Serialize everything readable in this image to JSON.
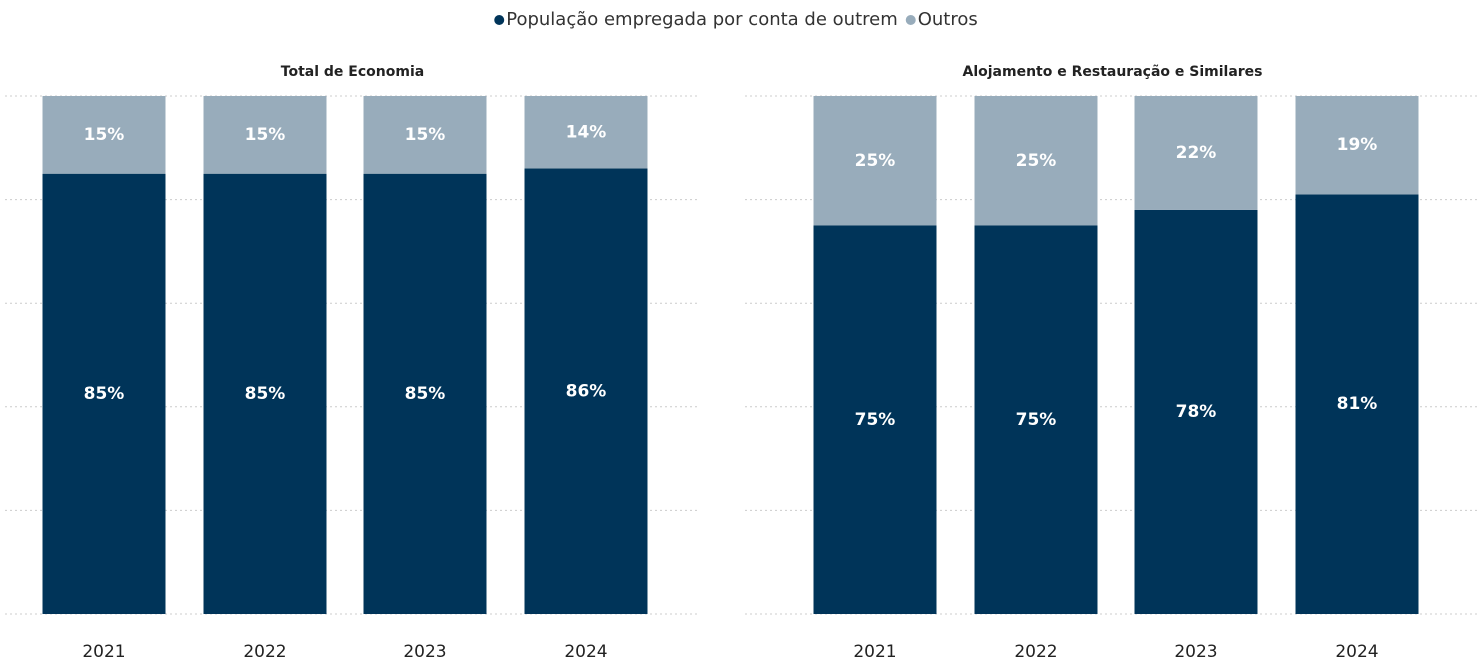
{
  "chart_data": [
    {
      "type": "bar",
      "stacked": true,
      "title": "Total de Economia",
      "categories": [
        "2021",
        "2022",
        "2023",
        "2024"
      ],
      "series": [
        {
          "name": "População empregada por conta de outrem",
          "color": "#003459",
          "values": [
            85,
            85,
            85,
            86
          ],
          "value_labels": [
            "85%",
            "85%",
            "85%",
            "86%"
          ]
        },
        {
          "name": "Outros",
          "color": "#98acbb",
          "values": [
            15,
            15,
            15,
            14
          ],
          "value_labels": [
            "15%",
            "15%",
            "15%",
            "14%"
          ]
        }
      ],
      "ylim": [
        0,
        100
      ],
      "yticks": [
        0,
        20,
        40,
        60,
        80,
        100
      ],
      "grid": true
    },
    {
      "type": "bar",
      "stacked": true,
      "title": "Alojamento e Restauração e Similares",
      "categories": [
        "2021",
        "2022",
        "2023",
        "2024"
      ],
      "series": [
        {
          "color": "#003459",
          "values": [
            75,
            75,
            78,
            81
          ],
          "value_labels": [
            "75%",
            "75%",
            "78%",
            "81%"
          ]
        },
        {
          "color": "#98acbb",
          "values": [
            25,
            25,
            22,
            19
          ],
          "value_labels": [
            "25%",
            "25%",
            "22%",
            "19%"
          ]
        }
      ],
      "ylim": [
        0,
        100
      ],
      "yticks": [
        0,
        20,
        40,
        60,
        80,
        100
      ],
      "grid": true
    }
  ]
}
